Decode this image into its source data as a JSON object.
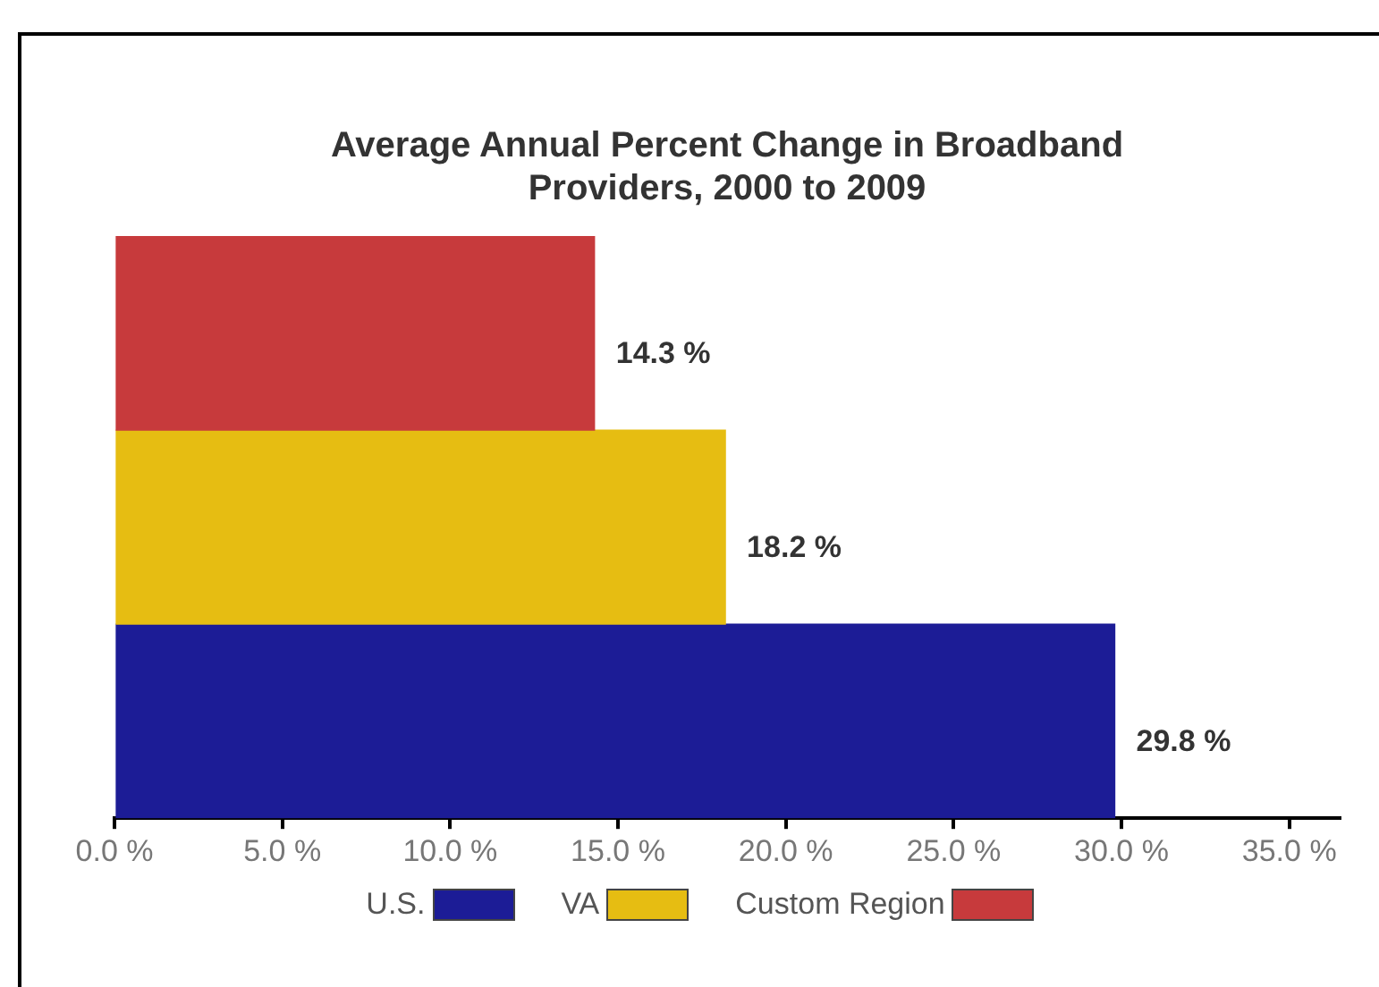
{
  "chart_data": {
    "type": "bar",
    "orientation": "horizontal",
    "title": [
      "Average Annual Percent Change in Broadband",
      "Providers, 2000 to 2009"
    ],
    "categories": [
      null
    ],
    "series": [
      {
        "name": "Custom Region",
        "color": "#c73a3c",
        "values": [
          14.3
        ],
        "value_labels": [
          "14.3 %"
        ]
      },
      {
        "name": "VA",
        "color": "#e6bd12",
        "values": [
          18.2
        ],
        "value_labels": [
          "18.2 %"
        ]
      },
      {
        "name": "U.S.",
        "color": "#1c1c96",
        "values": [
          29.8
        ],
        "value_labels": [
          "29.8 %"
        ]
      }
    ],
    "xlim": [
      0,
      36.5
    ],
    "xticks": [
      {
        "value": 0,
        "label": "0.0 %"
      },
      {
        "value": 5,
        "label": "5.0 %"
      },
      {
        "value": 10,
        "label": "10.0 %"
      },
      {
        "value": 15,
        "label": "15.0 %"
      },
      {
        "value": 20,
        "label": "20.0 %"
      },
      {
        "value": 25,
        "label": "25.0 %"
      },
      {
        "value": 30,
        "label": "30.0 %"
      },
      {
        "value": 35,
        "label": "35.0 %"
      }
    ],
    "grid": false,
    "legend": "bottom"
  }
}
